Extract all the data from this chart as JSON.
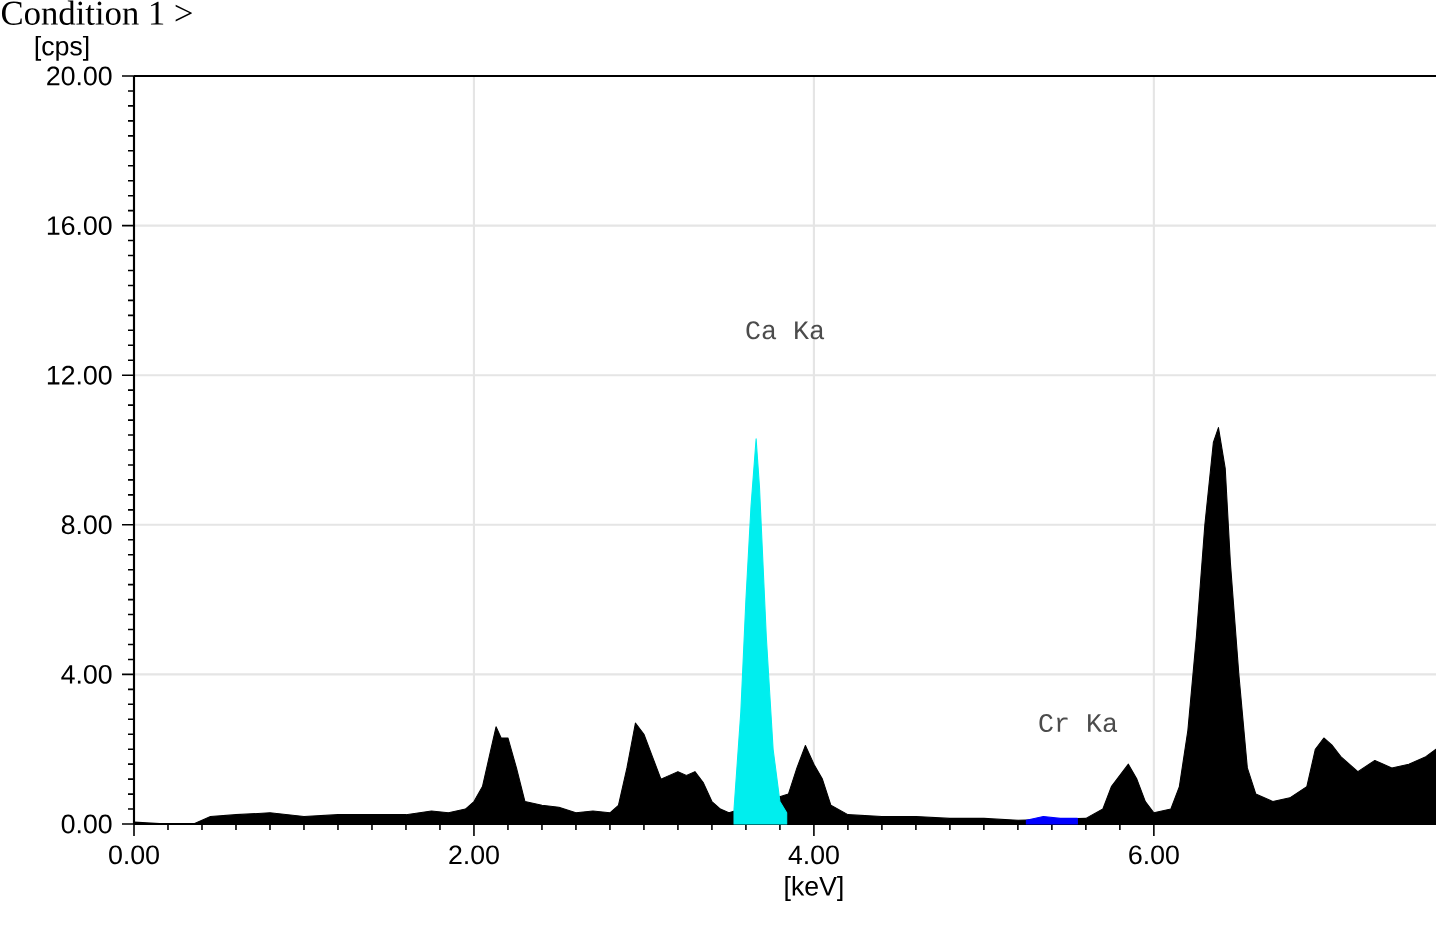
{
  "chart_data": {
    "type": "area",
    "title": "Condition 1 >",
    "xlabel": "[keV]",
    "ylabel": "[cps]",
    "xlim": [
      0,
      7.66
    ],
    "ylim": [
      0,
      20
    ],
    "xticks": [
      {
        "value": 0,
        "label": "0.00"
      },
      {
        "value": 2,
        "label": "2.00"
      },
      {
        "value": 4,
        "label": "4.00"
      },
      {
        "value": 6,
        "label": "6.00"
      }
    ],
    "yticks": [
      {
        "value": 0,
        "label": "0.00"
      },
      {
        "value": 4,
        "label": "4.00"
      },
      {
        "value": 8,
        "label": "8.00"
      },
      {
        "value": 12,
        "label": "12.00"
      },
      {
        "value": 16,
        "label": "16.00"
      },
      {
        "value": 20,
        "label": "20.00"
      }
    ],
    "grid": true,
    "series": [
      {
        "color": "#000000",
        "x": [
          0.0,
          0.2,
          0.35,
          0.45,
          0.6,
          0.8,
          1.0,
          1.2,
          1.4,
          1.6,
          1.75,
          1.85,
          1.95,
          2.0,
          2.05,
          2.1,
          2.13,
          2.16,
          2.2,
          2.25,
          2.3,
          2.4,
          2.5,
          2.6,
          2.7,
          2.8,
          2.85,
          2.9,
          2.95,
          3.0,
          3.05,
          3.1,
          3.15,
          3.2,
          3.25,
          3.3,
          3.35,
          3.4,
          3.45,
          3.5,
          3.85,
          3.9,
          3.95,
          4.0,
          4.05,
          4.1,
          4.2,
          4.4,
          4.6,
          4.8,
          5.0,
          5.2,
          5.6,
          5.7,
          5.75,
          5.8,
          5.85,
          5.9,
          5.95,
          6.0,
          6.1,
          6.15,
          6.2,
          6.25,
          6.3,
          6.35,
          6.38,
          6.42,
          6.45,
          6.5,
          6.55,
          6.6,
          6.7,
          6.8,
          6.9,
          6.95,
          7.0,
          7.05,
          7.1,
          7.2,
          7.3,
          7.4,
          7.5,
          7.6,
          7.66
        ],
        "values": [
          0.05,
          0.0,
          0.0,
          0.2,
          0.25,
          0.3,
          0.2,
          0.25,
          0.25,
          0.25,
          0.35,
          0.3,
          0.4,
          0.6,
          1.0,
          2.0,
          2.6,
          2.3,
          2.3,
          1.5,
          0.6,
          0.5,
          0.45,
          0.3,
          0.35,
          0.3,
          0.5,
          1.5,
          2.7,
          2.4,
          1.8,
          1.2,
          1.3,
          1.4,
          1.3,
          1.4,
          1.1,
          0.6,
          0.4,
          0.3,
          0.8,
          1.5,
          2.1,
          1.6,
          1.2,
          0.5,
          0.25,
          0.2,
          0.2,
          0.15,
          0.15,
          0.1,
          0.15,
          0.4,
          1.0,
          1.3,
          1.6,
          1.2,
          0.6,
          0.3,
          0.4,
          1.0,
          2.5,
          5.0,
          8.0,
          10.2,
          10.6,
          9.5,
          7.0,
          4.0,
          1.5,
          0.8,
          0.6,
          0.7,
          1.0,
          2.0,
          2.3,
          2.1,
          1.8,
          1.4,
          1.7,
          1.5,
          1.6,
          1.8,
          2.0
        ]
      },
      {
        "color": "#00eeee",
        "x": [
          3.53,
          3.57,
          3.6,
          3.63,
          3.66,
          3.68,
          3.72,
          3.76,
          3.8,
          3.84
        ],
        "values": [
          0.4,
          3.0,
          6.0,
          8.5,
          10.3,
          9.0,
          5.0,
          2.0,
          0.6,
          0.3
        ]
      },
      {
        "color": "#0000ff",
        "x": [
          5.25,
          5.35,
          5.45,
          5.55
        ],
        "values": [
          0.1,
          0.2,
          0.15,
          0.15
        ]
      }
    ],
    "annotations": [
      "Ca Ka",
      "Cr Ka"
    ]
  }
}
